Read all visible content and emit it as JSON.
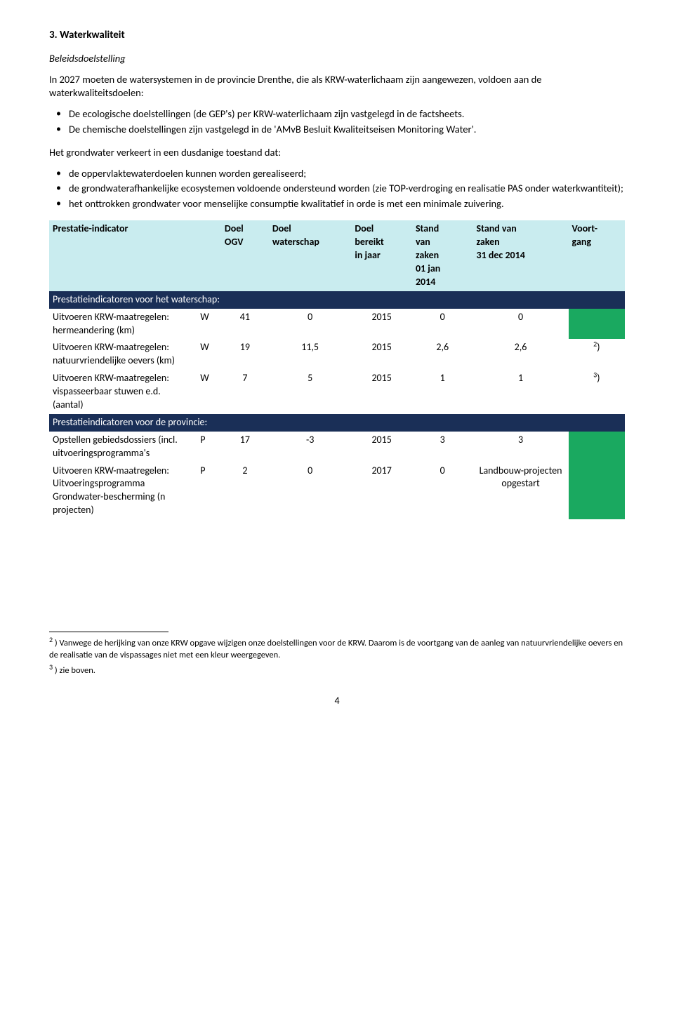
{
  "colors": {
    "header_bg": "#c9ecef",
    "section_bg": "#1a2f57",
    "progress_green": "#1aa960"
  },
  "title": "3.  Waterkwaliteit",
  "subheading": "Beleidsdoelstelling",
  "intro_para": "In 2027 moeten de watersystemen in de provincie Drenthe, die als KRW-waterlichaam zijn aangewezen, voldoen aan de waterkwaliteitsdoelen:",
  "intro_bullets": [
    "De ecologische doelstellingen (de GEP's) per KRW-waterlichaam zijn vastgelegd in de factsheets.",
    "De chemische doelstellingen zijn vastgelegd in de 'AMvB Besluit Kwaliteitseisen Monitoring Water'."
  ],
  "gw_para": "Het grondwater verkeert in een dusdanige toestand dat:",
  "gw_bullets": [
    "de oppervlaktewaterdoelen kunnen worden gerealiseerd;",
    "de grondwaterafhankelijke ecosystemen voldoende ondersteund worden (zie TOP-verdroging en realisatie PAS onder waterkwantiteit);",
    "het onttrokken grondwater voor menselijke consumptie kwalitatief in orde is met een minimale zuivering."
  ],
  "table": {
    "headers": {
      "indicator": "Prestatie-indicator",
      "ogv_l1": "Doel",
      "ogv_l2": "OGV",
      "ws_l1": "Doel",
      "ws_l2": "waterschap",
      "year_l1": "Doel",
      "year_l2": "bereikt",
      "year_l3": "in jaar",
      "s1_l1": "Stand",
      "s1_l2": "van",
      "s1_l3": "zaken",
      "s1_l4": "01 jan",
      "s1_l5": "2014",
      "s2_l1": "Stand van",
      "s2_l2": "zaken",
      "s2_l3": "31 dec 2014",
      "prog_l1": "Voort-",
      "prog_l2": "gang"
    },
    "section_ws": "Prestatieindicatoren voor het waterschap:",
    "section_prov": "Prestatieindicatoren voor de provincie:",
    "rows": [
      {
        "id": "r1",
        "ind": "Uitvoeren KRW-maatregelen: hermeandering (km)",
        "wp": "W",
        "ogv": "41",
        "ws": "0",
        "year": "2015",
        "s1": "0",
        "s2": "0",
        "prog_color": "#1aa960",
        "note": ""
      },
      {
        "id": "r2",
        "ind": "Uitvoeren KRW-maatregelen: natuurvriendelijke oevers (km)",
        "wp": "W",
        "ogv": "19",
        "ws": "11,5",
        "year": "2015",
        "s1": "2,6",
        "s2": "2,6",
        "prog_color": "",
        "note": "2",
        "note_suffix": ")"
      },
      {
        "id": "r3",
        "ind": "Uitvoeren KRW-maatregelen: vispasseerbaar stuwen e.d. (aantal)",
        "wp": "W",
        "ogv": "7",
        "ws": "5",
        "year": "2015",
        "s1": "1",
        "s2": "1",
        "prog_color": "",
        "note": "3",
        "note_suffix": ")"
      },
      {
        "id": "r4",
        "ind": "Opstellen gebiedsdossiers (incl. uitvoeringsprogramma's",
        "wp": "P",
        "ogv": "17",
        "ws": "-3",
        "year": "2015",
        "s1": "3",
        "s2": "3",
        "prog_color": "#1aa960",
        "note": ""
      },
      {
        "id": "r5",
        "ind": "Uitvoeren KRW-maatregelen: Uitvoeringsprogramma Grondwater-bescherming (n projecten)",
        "wp": "P",
        "ogv": "2",
        "ws": "0",
        "year": "2017",
        "s1": "0",
        "s2": "Landbouw-projecten opgestart",
        "prog_color": "#1aa960",
        "note": ""
      }
    ]
  },
  "footnotes": {
    "fn2_marker": "2",
    "fn2_text": " ) Vanwege de herijking van onze KRW opgave wijzigen onze doelstellingen voor de KRW. Daarom is de voortgang van de aanleg van natuurvriendelijke oevers en de realisatie van de vispassages niet met een kleur weergegeven.",
    "fn3_marker": "3",
    "fn3_text": " ) zie boven."
  },
  "page_number": "4"
}
